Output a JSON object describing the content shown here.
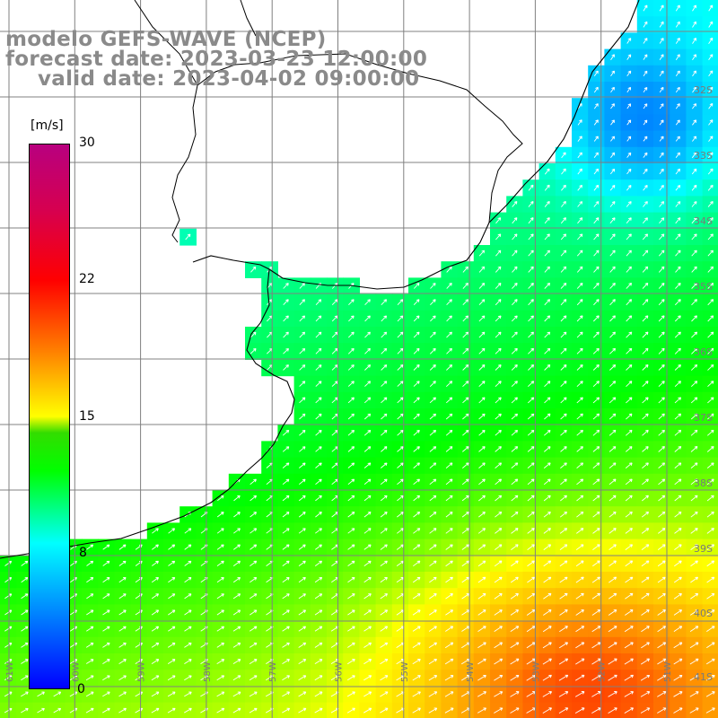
{
  "title": {
    "line1": "modelo GEFS-WAVE (NCEP)",
    "line2": "forecast date: 2023-03-23 12:00:00",
    "line3": "valid date: 2023-04-02 09:00:00"
  },
  "colorbar": {
    "unit": "[m/s]",
    "ticks": [
      "30",
      "22",
      "15",
      "8",
      "0"
    ],
    "range": [
      0,
      30
    ],
    "colors": [
      "#0000ff",
      "#00ffff",
      "#00ff00",
      "#ffff00",
      "#ff8000",
      "#ff0000",
      "#b8007f"
    ]
  },
  "map": {
    "lat_labels": [
      "32S",
      "33S",
      "34S",
      "35S",
      "36S",
      "37S",
      "38S",
      "39S",
      "40S",
      "41S"
    ],
    "lon_labels": [
      "61W",
      "60W",
      "59W",
      "58W",
      "57W",
      "56W",
      "55W",
      "54W",
      "53W",
      "52W",
      "51W"
    ],
    "land_color": "#ffffff",
    "grid_color": "#808080",
    "coast_color": "#000000",
    "arrow_color": "#ffffff"
  }
}
